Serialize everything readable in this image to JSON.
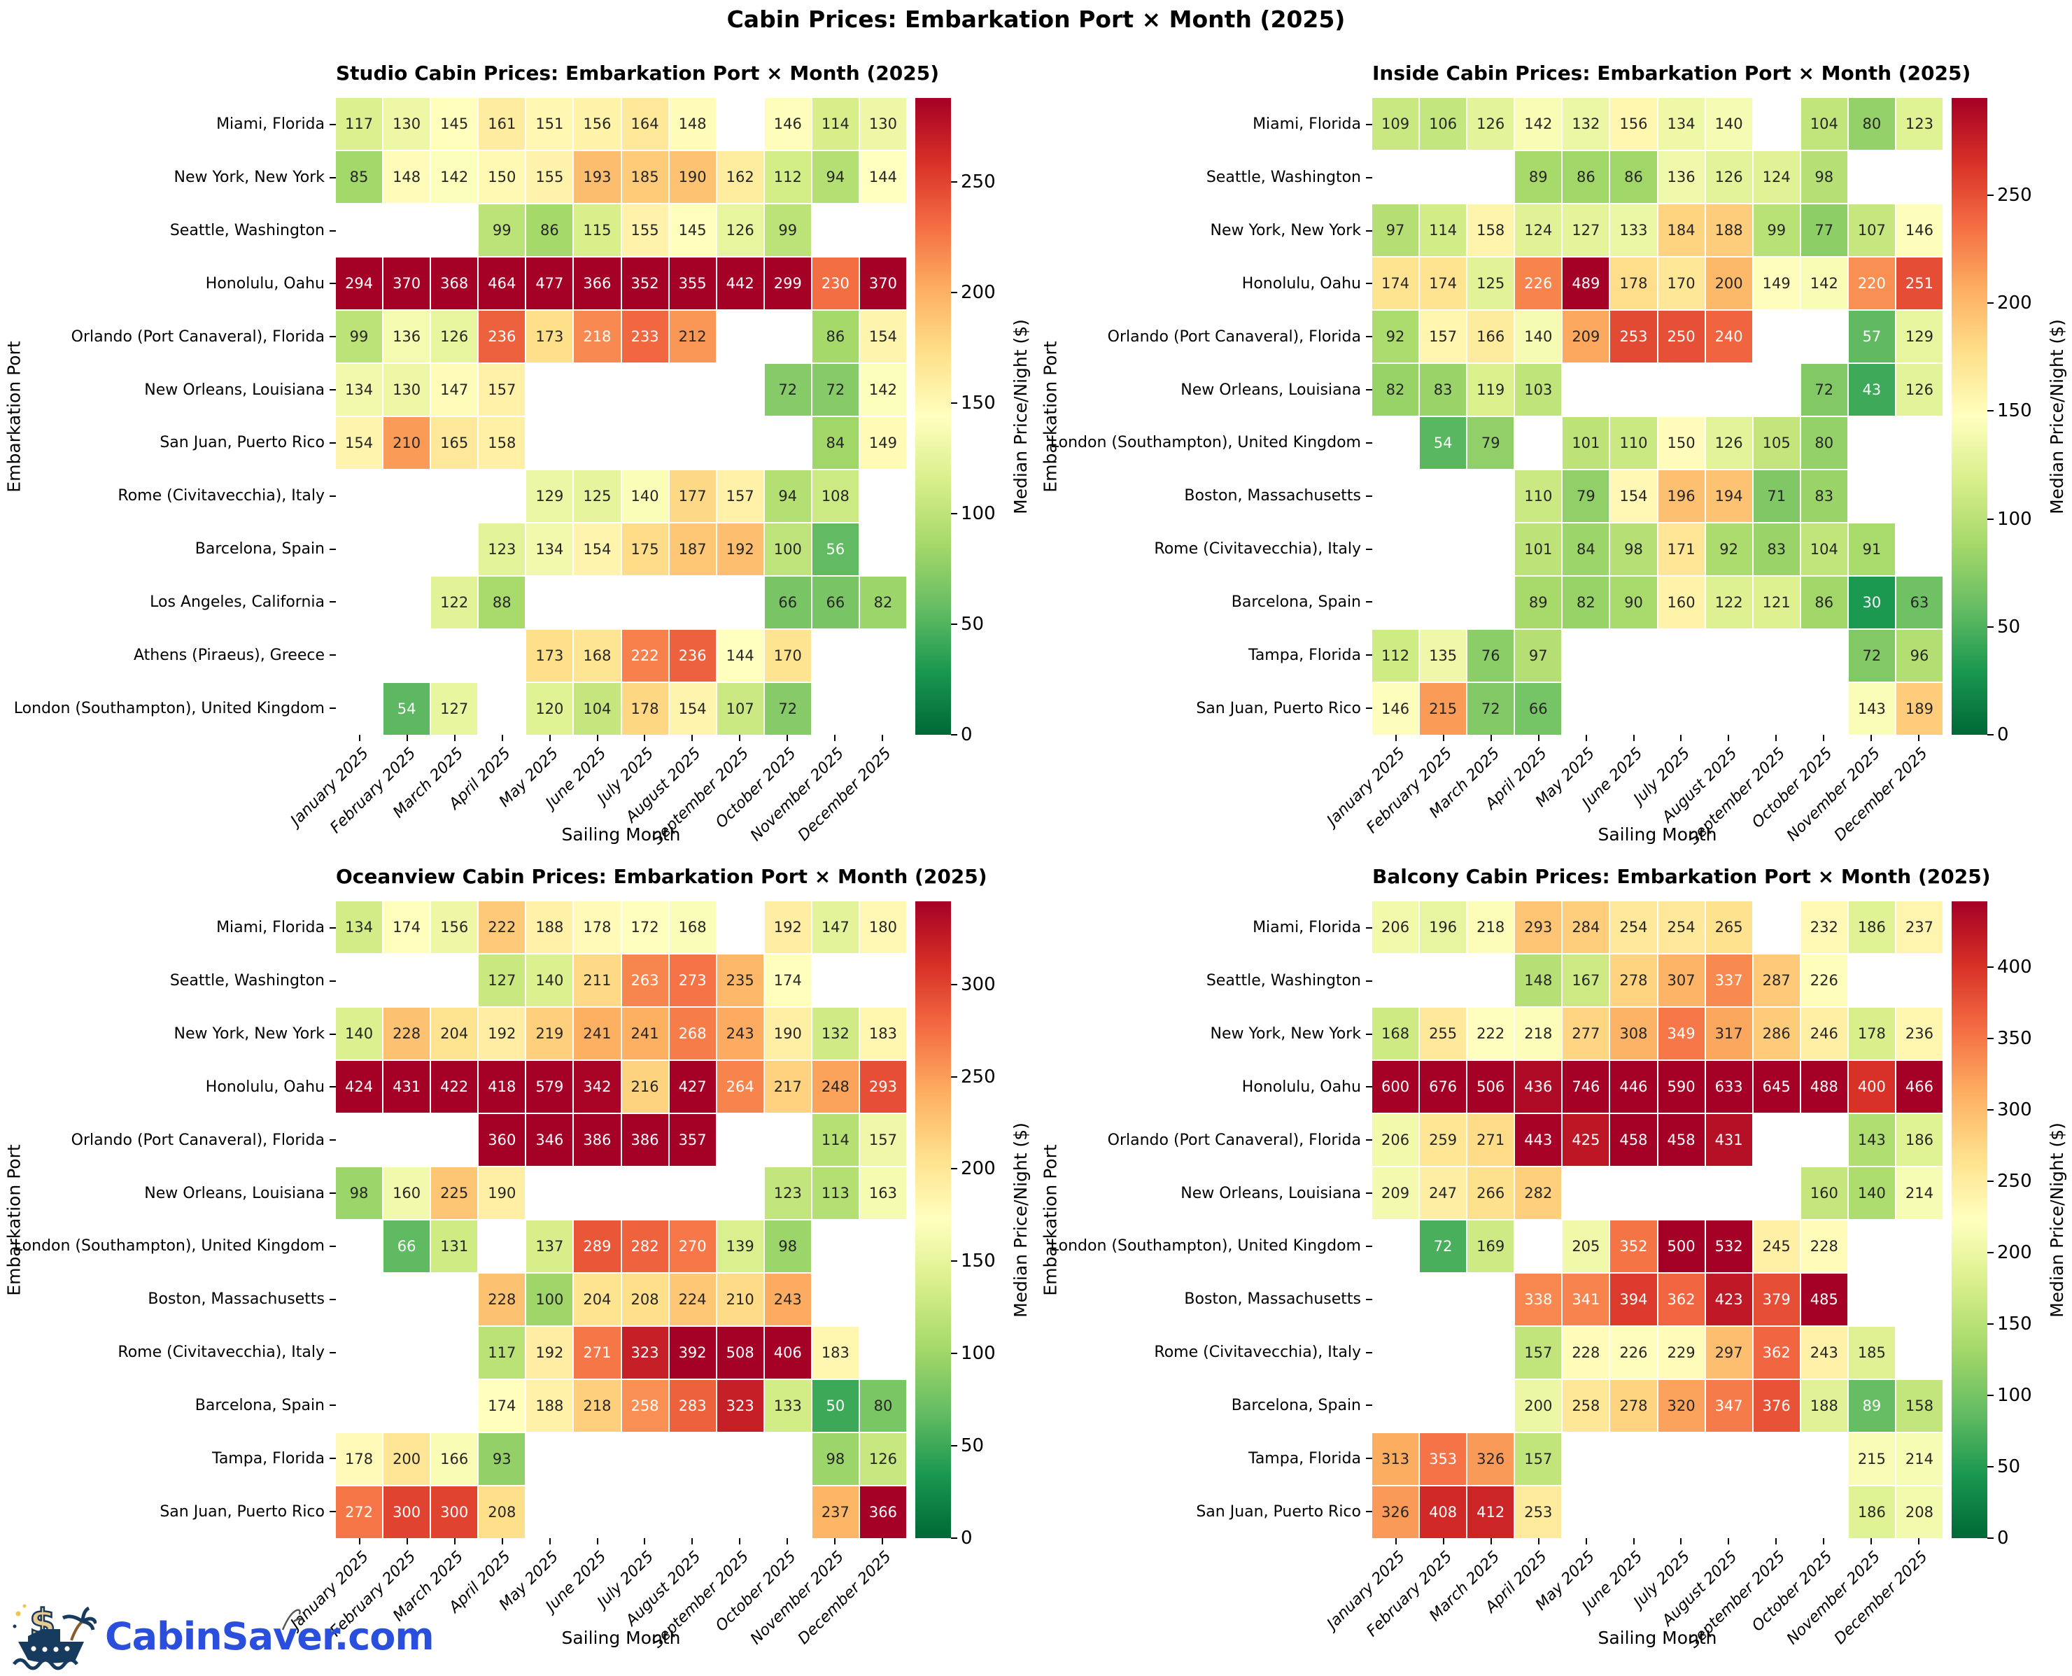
{
  "page": {
    "title": "Cabin Prices: Embarkation Port × Month (2025)",
    "logo_text": "CabinSaver.com"
  },
  "colors": {
    "logo_blue": "#2b4fdd",
    "annot_dark": "#262626",
    "annot_light": "#ffffff",
    "ship_navy": "#173a5f",
    "dollar_tan": "#e8c98f"
  },
  "colormap_rdylgn_r": [
    "#006837",
    "#1a9850",
    "#66bd63",
    "#a6d96a",
    "#d9ef8b",
    "#ffffbf",
    "#fee08b",
    "#fdae61",
    "#f46d43",
    "#d73027",
    "#a50026"
  ],
  "chart_data": [
    {
      "type": "heatmap",
      "title": "Studio Cabin Prices: Embarkation Port × Month (2025)",
      "xlabel": "Sailing Month",
      "ylabel": "Embarkation Port",
      "colorbar_label": "Median Price/Night ($)",
      "vmin": 0,
      "vmax": 288,
      "colorbar_ticks": [
        0,
        50,
        100,
        150,
        200,
        250
      ],
      "x": [
        "January 2025",
        "February 2025",
        "March 2025",
        "April 2025",
        "May 2025",
        "June 2025",
        "July 2025",
        "August 2025",
        "September 2025",
        "October 2025",
        "November 2025",
        "December 2025"
      ],
      "y": [
        "Miami, Florida",
        "New York, New York",
        "Seattle, Washington",
        "Honolulu, Oahu",
        "Orlando (Port Canaveral), Florida",
        "New Orleans, Louisiana",
        "San Juan, Puerto Rico",
        "Rome (Civitavecchia), Italy",
        "Barcelona, Spain",
        "Los Angeles, California",
        "Athens (Piraeus), Greece",
        "London (Southampton), United Kingdom"
      ],
      "values": [
        [
          117,
          130,
          145,
          161,
          151,
          156,
          164,
          148,
          null,
          146,
          114,
          130
        ],
        [
          85,
          148,
          142,
          150,
          155,
          193,
          185,
          190,
          162,
          112,
          94,
          144
        ],
        [
          null,
          null,
          null,
          99,
          86,
          115,
          155,
          145,
          126,
          99,
          null,
          null
        ],
        [
          294,
          370,
          368,
          464,
          477,
          366,
          352,
          355,
          442,
          299,
          230,
          370
        ],
        [
          99,
          136,
          126,
          236,
          173,
          218,
          233,
          212,
          null,
          null,
          86,
          154
        ],
        [
          134,
          130,
          147,
          157,
          null,
          null,
          null,
          null,
          null,
          72,
          72,
          142
        ],
        [
          154,
          210,
          165,
          158,
          null,
          null,
          null,
          null,
          null,
          null,
          84,
          149
        ],
        [
          null,
          null,
          null,
          null,
          129,
          125,
          140,
          177,
          157,
          94,
          108,
          null
        ],
        [
          null,
          null,
          null,
          123,
          134,
          154,
          175,
          187,
          192,
          100,
          56,
          null
        ],
        [
          null,
          null,
          122,
          88,
          null,
          null,
          null,
          null,
          null,
          66,
          66,
          82
        ],
        [
          null,
          null,
          null,
          null,
          173,
          168,
          222,
          236,
          144,
          170,
          null,
          null
        ],
        [
          null,
          54,
          127,
          null,
          120,
          104,
          178,
          154,
          107,
          72,
          null,
          null
        ]
      ]
    },
    {
      "type": "heatmap",
      "title": "Inside Cabin Prices: Embarkation Port × Month (2025)",
      "xlabel": "Sailing Month",
      "ylabel": "Embarkation Port",
      "colorbar_label": "Median Price/Night ($)",
      "vmin": 0,
      "vmax": 295,
      "colorbar_ticks": [
        0,
        50,
        100,
        150,
        200,
        250
      ],
      "x": [
        "January 2025",
        "February 2025",
        "March 2025",
        "April 2025",
        "May 2025",
        "June 2025",
        "July 2025",
        "August 2025",
        "September 2025",
        "October 2025",
        "November 2025",
        "December 2025"
      ],
      "y": [
        "Miami, Florida",
        "Seattle, Washington",
        "New York, New York",
        "Honolulu, Oahu",
        "Orlando (Port Canaveral), Florida",
        "New Orleans, Louisiana",
        "London (Southampton), United Kingdom",
        "Boston, Massachusetts",
        "Rome (Civitavecchia), Italy",
        "Barcelona, Spain",
        "Tampa, Florida",
        "San Juan, Puerto Rico"
      ],
      "values": [
        [
          109,
          106,
          126,
          142,
          132,
          156,
          134,
          140,
          null,
          104,
          80,
          123
        ],
        [
          null,
          null,
          null,
          89,
          86,
          86,
          136,
          126,
          124,
          98,
          null,
          null
        ],
        [
          97,
          114,
          158,
          124,
          127,
          133,
          184,
          188,
          99,
          77,
          107,
          146
        ],
        [
          174,
          174,
          125,
          226,
          489,
          178,
          170,
          200,
          149,
          142,
          220,
          251
        ],
        [
          92,
          157,
          166,
          140,
          209,
          253,
          250,
          240,
          null,
          null,
          57,
          129
        ],
        [
          82,
          83,
          119,
          103,
          null,
          null,
          null,
          null,
          null,
          72,
          43,
          126
        ],
        [
          null,
          54,
          79,
          null,
          101,
          110,
          150,
          126,
          105,
          80,
          null,
          null
        ],
        [
          null,
          null,
          null,
          110,
          79,
          154,
          196,
          194,
          71,
          83,
          null,
          null
        ],
        [
          null,
          null,
          null,
          101,
          84,
          98,
          171,
          92,
          83,
          104,
          91,
          null
        ],
        [
          null,
          null,
          null,
          89,
          82,
          90,
          160,
          122,
          121,
          86,
          30,
          63
        ],
        [
          112,
          135,
          76,
          97,
          null,
          null,
          null,
          null,
          null,
          null,
          72,
          96
        ],
        [
          146,
          215,
          72,
          66,
          null,
          null,
          null,
          null,
          null,
          null,
          143,
          189
        ]
      ]
    },
    {
      "type": "heatmap",
      "title": "Oceanview Cabin Prices: Embarkation Port × Month (2025)",
      "xlabel": "Sailing Month",
      "ylabel": "Embarkation Port",
      "colorbar_label": "Median Price/Night ($)",
      "vmin": 0,
      "vmax": 345,
      "colorbar_ticks": [
        0,
        50,
        100,
        150,
        200,
        250,
        300
      ],
      "x": [
        "January 2025",
        "February 2025",
        "March 2025",
        "April 2025",
        "May 2025",
        "June 2025",
        "July 2025",
        "August 2025",
        "September 2025",
        "October 2025",
        "November 2025",
        "December 2025"
      ],
      "y": [
        "Miami, Florida",
        "Seattle, Washington",
        "New York, New York",
        "Honolulu, Oahu",
        "Orlando (Port Canaveral), Florida",
        "New Orleans, Louisiana",
        "London (Southampton), United Kingdom",
        "Boston, Massachusetts",
        "Rome (Civitavecchia), Italy",
        "Barcelona, Spain",
        "Tampa, Florida",
        "San Juan, Puerto Rico"
      ],
      "values": [
        [
          134,
          174,
          156,
          222,
          188,
          178,
          172,
          168,
          null,
          192,
          147,
          180
        ],
        [
          null,
          null,
          null,
          127,
          140,
          211,
          263,
          273,
          235,
          174,
          null,
          null
        ],
        [
          140,
          228,
          204,
          192,
          219,
          241,
          241,
          268,
          243,
          190,
          132,
          183
        ],
        [
          424,
          431,
          422,
          418,
          579,
          342,
          216,
          427,
          264,
          217,
          248,
          293
        ],
        [
          null,
          null,
          null,
          360,
          346,
          386,
          386,
          357,
          null,
          null,
          114,
          157
        ],
        [
          98,
          160,
          225,
          190,
          null,
          null,
          null,
          null,
          null,
          123,
          113,
          163
        ],
        [
          null,
          66,
          131,
          null,
          137,
          289,
          282,
          270,
          139,
          98,
          null,
          null
        ],
        [
          null,
          null,
          null,
          228,
          100,
          204,
          208,
          224,
          210,
          243,
          null,
          null
        ],
        [
          null,
          null,
          null,
          117,
          192,
          271,
          323,
          392,
          508,
          406,
          183,
          null
        ],
        [
          null,
          null,
          null,
          174,
          188,
          218,
          258,
          283,
          323,
          133,
          50,
          80
        ],
        [
          178,
          200,
          166,
          93,
          null,
          null,
          null,
          null,
          null,
          null,
          98,
          126
        ],
        [
          272,
          300,
          300,
          208,
          null,
          null,
          null,
          null,
          null,
          null,
          237,
          366
        ]
      ]
    },
    {
      "type": "heatmap",
      "title": "Balcony Cabin Prices: Embarkation Port × Month (2025)",
      "xlabel": "Sailing Month",
      "ylabel": "Embarkation Port",
      "colorbar_label": "Median Price/Night ($)",
      "vmin": 0,
      "vmax": 446,
      "colorbar_ticks": [
        0,
        50,
        100,
        150,
        200,
        250,
        300,
        350,
        400
      ],
      "x": [
        "January 2025",
        "February 2025",
        "March 2025",
        "April 2025",
        "May 2025",
        "June 2025",
        "July 2025",
        "August 2025",
        "September 2025",
        "October 2025",
        "November 2025",
        "December 2025"
      ],
      "y": [
        "Miami, Florida",
        "Seattle, Washington",
        "New York, New York",
        "Honolulu, Oahu",
        "Orlando (Port Canaveral), Florida",
        "New Orleans, Louisiana",
        "London (Southampton), United Kingdom",
        "Boston, Massachusetts",
        "Rome (Civitavecchia), Italy",
        "Barcelona, Spain",
        "Tampa, Florida",
        "San Juan, Puerto Rico"
      ],
      "values": [
        [
          206,
          196,
          218,
          293,
          284,
          254,
          254,
          265,
          null,
          232,
          186,
          237
        ],
        [
          null,
          null,
          null,
          148,
          167,
          278,
          307,
          337,
          287,
          226,
          null,
          null
        ],
        [
          168,
          255,
          222,
          218,
          277,
          308,
          349,
          317,
          286,
          246,
          178,
          236
        ],
        [
          600,
          676,
          506,
          436,
          746,
          446,
          590,
          633,
          645,
          488,
          400,
          466
        ],
        [
          206,
          259,
          271,
          443,
          425,
          458,
          458,
          431,
          null,
          null,
          143,
          186
        ],
        [
          209,
          247,
          266,
          282,
          null,
          null,
          null,
          null,
          null,
          160,
          140,
          214
        ],
        [
          null,
          72,
          169,
          null,
          205,
          352,
          500,
          532,
          245,
          228,
          null,
          null
        ],
        [
          null,
          null,
          null,
          338,
          341,
          394,
          362,
          423,
          379,
          485,
          null,
          null
        ],
        [
          null,
          null,
          null,
          157,
          228,
          226,
          229,
          297,
          362,
          243,
          185,
          null
        ],
        [
          null,
          null,
          null,
          200,
          258,
          278,
          320,
          347,
          376,
          188,
          89,
          158
        ],
        [
          313,
          353,
          326,
          157,
          null,
          null,
          null,
          null,
          null,
          null,
          215,
          214
        ],
        [
          326,
          408,
          412,
          253,
          null,
          null,
          null,
          null,
          null,
          null,
          186,
          208
        ]
      ]
    }
  ]
}
